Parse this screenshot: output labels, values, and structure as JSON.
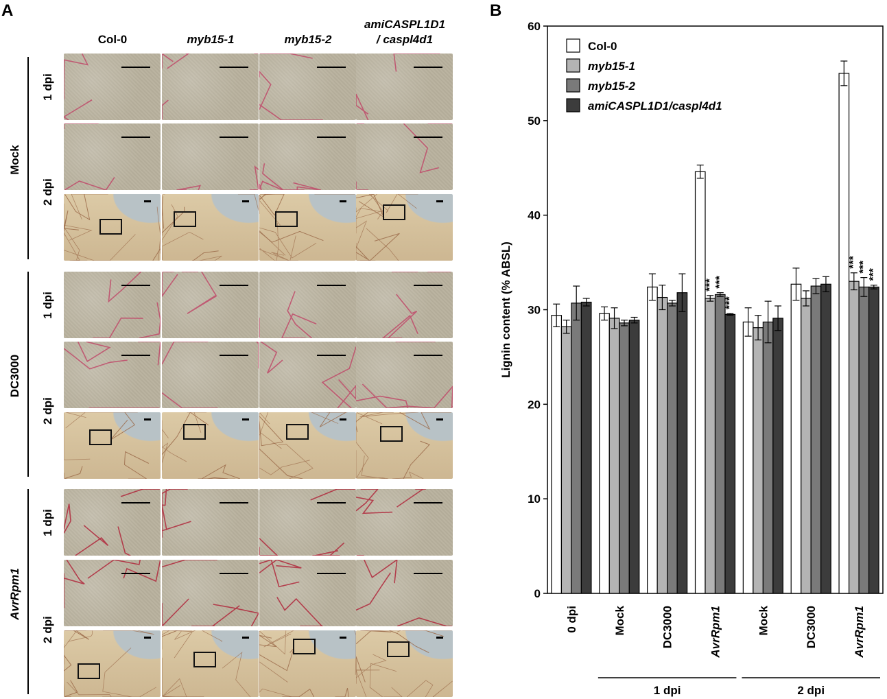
{
  "panel_a": {
    "letter": "A",
    "columns": [
      "Col-0",
      "myb15-1",
      "myb15-2",
      "amiCASPL1D1\n/ caspl4d1"
    ],
    "column_line1": [
      "Col-0",
      "myb15-1",
      "myb15-2",
      "amiCASPL1D1"
    ],
    "column_line2": [
      "",
      "",
      "",
      "/ caspl4d1"
    ],
    "treatments": [
      "Mock",
      "DC3000",
      "AvrRpm1"
    ],
    "timepoints": [
      "1 dpi",
      "2 dpi"
    ]
  },
  "panel_b": {
    "letter": "B"
  },
  "chart_data": {
    "type": "bar",
    "ylabel": "Lignin content (% ABSL)",
    "xlabel": "",
    "ylim": [
      0,
      60
    ],
    "yticks": [
      0,
      10,
      20,
      30,
      40,
      50,
      60
    ],
    "categories": [
      "0 dpi",
      "Mock",
      "DC3000",
      "AvrRpm1",
      "Mock",
      "DC3000",
      "AvrRpm1"
    ],
    "category_italic": [
      false,
      false,
      false,
      true,
      false,
      false,
      true
    ],
    "groups": [
      {
        "label": "1 dpi",
        "categories": [
          1,
          2,
          3
        ]
      },
      {
        "label": "2 dpi",
        "categories": [
          4,
          5,
          6
        ]
      }
    ],
    "series": [
      {
        "name": "Col-0",
        "italic": false,
        "color": "#ffffff",
        "values": [
          29.4,
          29.6,
          32.4,
          44.6,
          28.7,
          32.7,
          55.0
        ],
        "errors": [
          1.2,
          0.7,
          1.4,
          0.7,
          1.5,
          1.7,
          1.3
        ]
      },
      {
        "name": "myb15-1",
        "italic": true,
        "color": "#b4b4b4",
        "values": [
          28.2,
          29.1,
          31.3,
          31.2,
          28.1,
          31.2,
          33.0
        ],
        "errors": [
          0.7,
          1.1,
          1.3,
          0.3,
          1.3,
          0.8,
          0.9
        ]
      },
      {
        "name": "myb15-2",
        "italic": true,
        "color": "#7a7a7a",
        "values": [
          30.7,
          28.6,
          30.7,
          31.6,
          28.7,
          32.5,
          32.4
        ],
        "errors": [
          1.8,
          0.3,
          0.3,
          0.2,
          2.2,
          0.8,
          1.0
        ]
      },
      {
        "name": "amiCASPL1D1/caspl4d1",
        "italic": true,
        "color": "#3c3c3c",
        "values": [
          30.8,
          28.9,
          31.8,
          29.5,
          29.1,
          32.7,
          32.4
        ],
        "errors": [
          0.4,
          0.3,
          2.0,
          0.1,
          1.3,
          0.8,
          0.2
        ]
      }
    ],
    "significance": [
      {
        "category": 3,
        "series": [
          1,
          2,
          3
        ],
        "label": "***"
      },
      {
        "category": 6,
        "series": [
          1,
          2,
          3
        ],
        "label": "***"
      }
    ],
    "legend_position": "top-left",
    "grid": false
  }
}
